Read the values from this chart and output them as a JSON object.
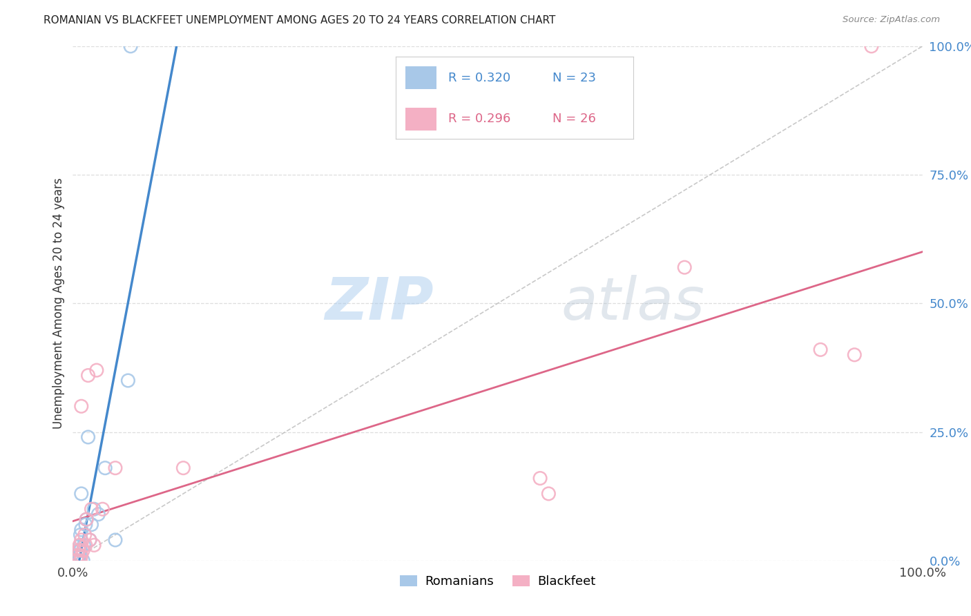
{
  "title": "ROMANIAN VS BLACKFEET UNEMPLOYMENT AMONG AGES 20 TO 24 YEARS CORRELATION CHART",
  "source": "Source: ZipAtlas.com",
  "ylabel": "Unemployment Among Ages 20 to 24 years",
  "ytick_labels": [
    "0.0%",
    "25.0%",
    "50.0%",
    "75.0%",
    "100.0%"
  ],
  "ytick_values": [
    0.0,
    0.25,
    0.5,
    0.75,
    1.0
  ],
  "xtick_labels": [
    "0.0%",
    "100.0%"
  ],
  "xtick_values": [
    0.0,
    1.0
  ],
  "legend_romanians": "Romanians",
  "legend_blackfeet": "Blackfeet",
  "legend_r_romanian": "R = 0.320",
  "legend_n_romanian": "N = 23",
  "legend_r_blackfeet": "R = 0.296",
  "legend_n_blackfeet": "N = 26",
  "color_romanian_marker": "#a8c8e8",
  "color_blackfeet_marker": "#f4b0c4",
  "color_romanian_line": "#4488cc",
  "color_blackfeet_line": "#dd6688",
  "color_diagonal": "#bbbbbb",
  "color_ytick": "#4488cc",
  "romanians_x": [
    0.005,
    0.006,
    0.007,
    0.008,
    0.008,
    0.009,
    0.009,
    0.009,
    0.01,
    0.01,
    0.012,
    0.013,
    0.015,
    0.016,
    0.018,
    0.02,
    0.022,
    0.025,
    0.03,
    0.038,
    0.05,
    0.065,
    0.068
  ],
  "romanians_y": [
    0.0,
    0.0,
    0.0,
    0.01,
    0.02,
    0.02,
    0.03,
    0.05,
    0.06,
    0.13,
    0.0,
    0.03,
    0.07,
    0.08,
    0.24,
    0.04,
    0.07,
    0.1,
    0.09,
    0.18,
    0.04,
    0.35,
    1.0
  ],
  "blackfeet_x": [
    0.005,
    0.006,
    0.007,
    0.008,
    0.009,
    0.01,
    0.01,
    0.01,
    0.012,
    0.014,
    0.015,
    0.016,
    0.018,
    0.02,
    0.022,
    0.025,
    0.028,
    0.035,
    0.05,
    0.13,
    0.55,
    0.56,
    0.72,
    0.88,
    0.92,
    0.94
  ],
  "blackfeet_y": [
    0.0,
    0.01,
    0.02,
    0.03,
    0.0,
    0.01,
    0.04,
    0.3,
    0.02,
    0.05,
    0.03,
    0.08,
    0.36,
    0.04,
    0.1,
    0.03,
    0.37,
    0.1,
    0.18,
    0.18,
    0.16,
    0.13,
    0.57,
    0.41,
    0.4,
    1.0
  ],
  "background_color": "#ffffff",
  "grid_color": "#dddddd",
  "xlim": [
    0.0,
    1.0
  ],
  "ylim": [
    0.0,
    1.0
  ],
  "figsize": [
    14.06,
    8.92
  ],
  "dpi": 100
}
